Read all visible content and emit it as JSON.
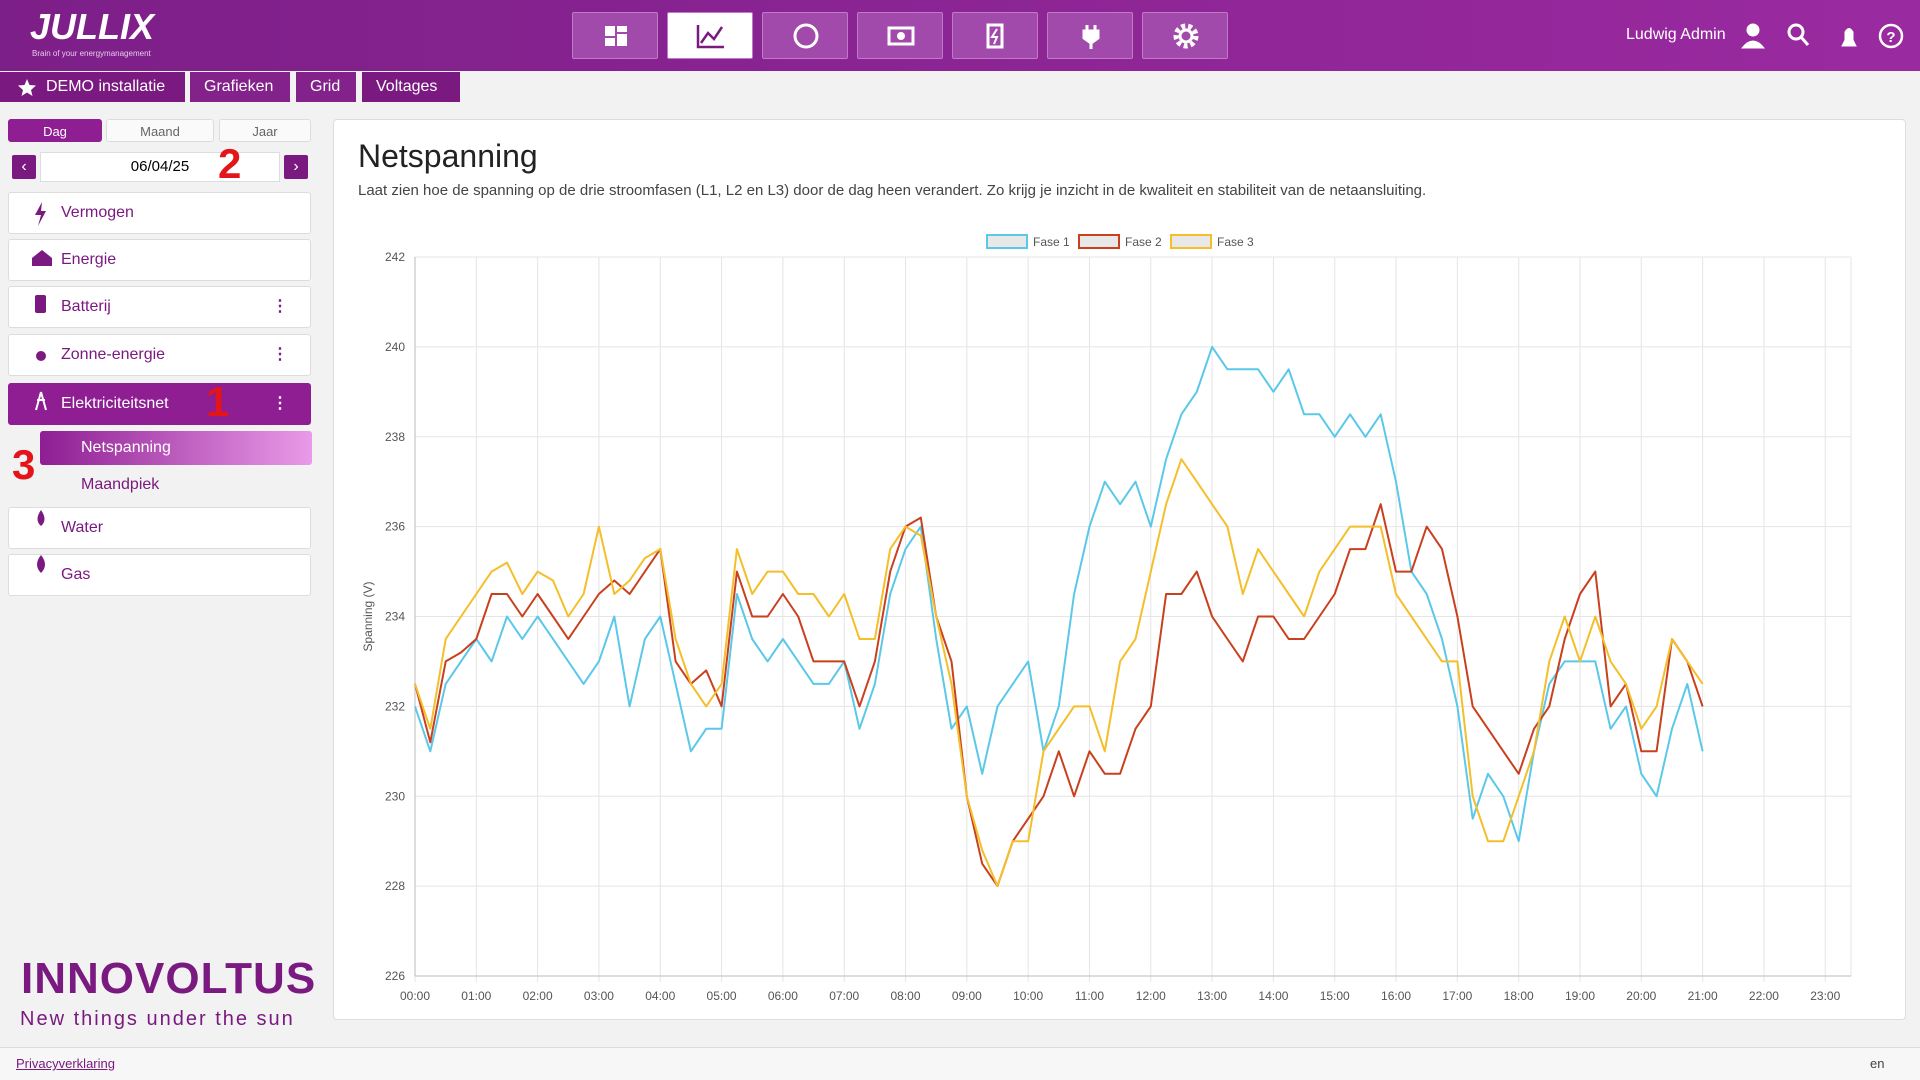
{
  "header": {
    "logo": "JULLIX",
    "tagline": "Brain of your energymanagement",
    "user": "Ludwig Admin"
  },
  "breadcrumb": [
    "DEMO installatie",
    "Grafieken",
    "Grid",
    "Voltages"
  ],
  "sidebar": {
    "tabs": [
      "Dag",
      "Maand",
      "Jaar"
    ],
    "date": "06/04/25",
    "menu": [
      "Vermogen",
      "Energie",
      "Batterij",
      "Zonne-energie",
      "Elektriciteitsnet"
    ],
    "submenu": [
      "Netspanning",
      "Maandpiek"
    ],
    "menu_after": [
      "Water",
      "Gas"
    ],
    "brand": "INNOVOLTUS",
    "brand_tagline": "New things under the sun"
  },
  "annotations": [
    "1",
    "2",
    "3"
  ],
  "page": {
    "title": "Netspanning",
    "description": "Laat zien hoe de spanning op de drie stroomfasen (L1, L2 en L3) door de dag heen verandert. Zo krijg je inzicht in de kwaliteit en stabiliteit van de netaansluiting."
  },
  "chart_data": {
    "type": "line",
    "y_label": "Spanning (V)",
    "x": [
      0,
      0.25,
      0.5,
      0.75,
      1,
      1.25,
      1.5,
      1.75,
      2,
      2.25,
      2.5,
      2.75,
      3,
      3.25,
      3.5,
      3.75,
      4,
      4.25,
      4.5,
      4.75,
      5,
      5.25,
      5.5,
      5.75,
      6,
      6.25,
      6.5,
      6.75,
      7,
      7.25,
      7.5,
      7.75,
      8,
      8.25,
      8.5,
      8.75,
      9,
      9.25,
      9.5,
      9.75,
      10,
      10.25,
      10.5,
      10.75,
      11,
      11.25,
      11.5,
      11.75,
      12,
      12.25,
      12.5,
      12.75,
      13,
      13.25,
      13.5,
      13.75,
      14,
      14.25,
      14.5,
      14.75,
      15,
      15.25,
      15.5,
      15.75,
      16,
      16.25,
      16.5,
      16.75,
      17,
      17.25,
      17.5,
      17.75,
      18,
      18.25,
      18.5,
      18.75,
      19,
      19.25,
      19.5,
      19.75,
      20,
      20.25,
      20.5,
      20.75,
      21
    ],
    "series": [
      {
        "name": "Fase 1",
        "color": "#5bc8ea",
        "values": [
          232,
          231,
          232.5,
          233,
          233.5,
          233,
          234,
          233.5,
          234,
          233.5,
          233,
          232.5,
          233,
          234,
          232,
          233.5,
          234,
          232.5,
          231,
          231.5,
          231.5,
          234.5,
          233.5,
          233,
          233.5,
          233,
          232.5,
          232.5,
          233,
          231.5,
          232.5,
          234.5,
          235.5,
          236,
          233.5,
          231.5,
          232,
          230.5,
          232,
          232.5,
          233,
          231,
          232,
          234.5,
          236,
          237,
          236.5,
          237,
          236,
          237.5,
          238.5,
          239,
          240,
          239.5,
          239.5,
          239.5,
          239,
          239.5,
          238.5,
          238.5,
          238,
          238.5,
          238,
          238.5,
          237,
          235,
          234.5,
          233.5,
          232,
          229.5,
          230.5,
          230,
          229,
          231,
          232.5,
          233,
          233,
          233,
          231.5,
          232,
          230.5,
          230,
          231.5,
          232.5,
          231
        ]
      },
      {
        "name": "Fase 2",
        "color": "#c9401f",
        "values": [
          232.5,
          231.2,
          233,
          233.2,
          233.5,
          234.5,
          234.5,
          234,
          234.5,
          234,
          233.5,
          234,
          234.5,
          234.8,
          234.5,
          235,
          235.5,
          233,
          232.5,
          232.8,
          232,
          235,
          234,
          234,
          234.5,
          234,
          233,
          233,
          233,
          232,
          233,
          235,
          236,
          236.2,
          234,
          233,
          230,
          228.5,
          228,
          229,
          229.5,
          230,
          231,
          230,
          231,
          230.5,
          230.5,
          231.5,
          232,
          234.5,
          234.5,
          235,
          234,
          233.5,
          233,
          234,
          234,
          233.5,
          233.5,
          234,
          234.5,
          235.5,
          235.5,
          236.5,
          235,
          235,
          236,
          235.5,
          234,
          232,
          231.5,
          231,
          230.5,
          231.5,
          232,
          233.5,
          234.5,
          235,
          232,
          232.5,
          231,
          231,
          233.5,
          233,
          232
        ]
      },
      {
        "name": "Fase 3",
        "color": "#f4bf2a",
        "values": [
          232.5,
          231.5,
          233.5,
          234,
          234.5,
          235,
          235.2,
          234.5,
          235,
          234.8,
          234,
          234.5,
          236,
          234.5,
          234.8,
          235.3,
          235.5,
          233.5,
          232.5,
          232,
          232.5,
          235.5,
          234.5,
          235,
          235,
          234.5,
          234.5,
          234,
          234.5,
          233.5,
          233.5,
          235.5,
          236,
          235.8,
          234,
          232.5,
          230,
          228.8,
          228,
          229,
          229,
          231,
          231.5,
          232,
          232,
          231,
          233,
          233.5,
          235,
          236.5,
          237.5,
          237,
          236.5,
          236,
          234.5,
          235.5,
          235,
          234.5,
          234,
          235,
          235.5,
          236,
          236,
          236,
          234.5,
          234,
          233.5,
          233,
          233,
          230,
          229,
          229,
          230,
          231,
          233,
          234,
          233,
          234,
          233,
          232.5,
          231.5,
          232,
          233.5,
          233,
          232.5
        ]
      }
    ],
    "xlim": [
      0,
      23.42
    ],
    "ylim": [
      226,
      242
    ],
    "yticks": [
      226,
      228,
      230,
      232,
      234,
      236,
      238,
      240,
      242
    ],
    "xticks": [
      {
        "value": 0,
        "label": "00:00"
      },
      {
        "value": 1,
        "label": "01:00"
      },
      {
        "value": 2,
        "label": "02:00"
      },
      {
        "value": 3,
        "label": "03:00"
      },
      {
        "value": 4,
        "label": "04:00"
      },
      {
        "value": 5,
        "label": "05:00"
      },
      {
        "value": 6,
        "label": "06:00"
      },
      {
        "value": 7,
        "label": "07:00"
      },
      {
        "value": 8,
        "label": "08:00"
      },
      {
        "value": 9,
        "label": "09:00"
      },
      {
        "value": 10,
        "label": "10:00"
      },
      {
        "value": 11,
        "label": "11:00"
      },
      {
        "value": 12,
        "label": "12:00"
      },
      {
        "value": 13,
        "label": "13:00"
      },
      {
        "value": 14,
        "label": "14:00"
      },
      {
        "value": 15,
        "label": "15:00"
      },
      {
        "value": 16,
        "label": "16:00"
      },
      {
        "value": 17,
        "label": "17:00"
      },
      {
        "value": 18,
        "label": "18:00"
      },
      {
        "value": 19,
        "label": "19:00"
      },
      {
        "value": 20,
        "label": "20:00"
      },
      {
        "value": 21,
        "label": "21:00"
      },
      {
        "value": 22,
        "label": "22:00"
      },
      {
        "value": 23,
        "label": "23:00"
      }
    ],
    "grid": true,
    "legend": "top"
  },
  "footer": {
    "privacy": "Privacyverklaring",
    "language": "en"
  }
}
